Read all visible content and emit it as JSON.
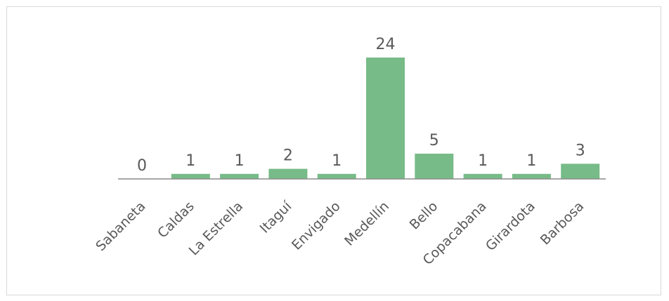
{
  "colors": {
    "bar": "#77bb88",
    "axis": "#8c8c8c",
    "text": "#595959",
    "frame": "#d9d9d9"
  },
  "chart_data": {
    "type": "bar",
    "categories": [
      "Sabaneta",
      "Caldas",
      "La Estrella",
      "Itaguí",
      "Envigado",
      "Medellín",
      "Bello",
      "Copacabana",
      "Girardota",
      "Barbosa"
    ],
    "values": [
      0,
      1,
      1,
      2,
      1,
      24,
      5,
      1,
      1,
      3
    ],
    "data_labels": [
      "0",
      "1",
      "1",
      "2",
      "1",
      "24",
      "5",
      "1",
      "1",
      "3"
    ],
    "ylim": [
      0,
      24
    ],
    "grid": false,
    "legend": "none"
  }
}
